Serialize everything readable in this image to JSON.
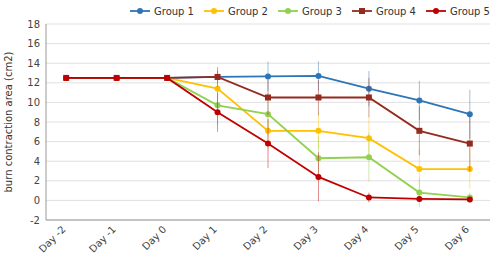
{
  "chart_data": {
    "type": "line",
    "categories": [
      "Day -2",
      "Day -1",
      "Day 0",
      "Day 1",
      "Day 2",
      "Day 3",
      "Day 4",
      "Day 5",
      "Day 6"
    ],
    "series": [
      {
        "name": "Group 1",
        "color": "#2E75B6",
        "marker": "circle",
        "values": [
          12.5,
          12.5,
          12.5,
          12.6,
          12.65,
          12.7,
          11.4,
          10.2,
          8.8
        ],
        "errors": [
          null,
          null,
          null,
          0.6,
          1.5,
          1.5,
          1.8,
          2.0,
          2.5
        ]
      },
      {
        "name": "Group 2",
        "color": "#FFC000",
        "marker": "circle",
        "values": [
          12.5,
          12.5,
          12.5,
          11.4,
          7.1,
          7.1,
          6.35,
          3.2,
          3.2
        ],
        "errors": [
          null,
          null,
          null,
          1.8,
          2.0,
          1.8,
          2.2,
          2.0,
          2.0
        ]
      },
      {
        "name": "Group 3",
        "color": "#92D050",
        "marker": "circle",
        "values": [
          12.5,
          12.5,
          12.5,
          9.7,
          8.8,
          4.3,
          4.4,
          0.8,
          0.3
        ],
        "errors": [
          null,
          null,
          null,
          2.0,
          2.2,
          2.2,
          2.5,
          1.5,
          0.5
        ]
      },
      {
        "name": "Group 4",
        "color": "#952B1E",
        "marker": "square",
        "values": [
          12.5,
          12.5,
          12.5,
          12.6,
          10.5,
          10.5,
          10.5,
          7.1,
          5.8
        ],
        "errors": [
          null,
          null,
          null,
          1.0,
          1.8,
          1.8,
          2.0,
          2.5,
          2.8
        ]
      },
      {
        "name": "Group 5",
        "color": "#C00000",
        "marker": "circle",
        "values": [
          12.5,
          12.5,
          12.5,
          9.0,
          5.8,
          2.4,
          0.3,
          0.15,
          0.1
        ],
        "errors": [
          null,
          null,
          null,
          2.0,
          2.5,
          2.5,
          0.5,
          0.3,
          0.2
        ]
      }
    ],
    "y_label": "burn contraction area (cm2)",
    "ylim": [
      -2,
      18
    ],
    "yticks": [
      -2,
      0,
      2,
      4,
      6,
      8,
      10,
      12,
      14,
      16,
      18
    ],
    "grid": true,
    "legend": "upper right"
  }
}
